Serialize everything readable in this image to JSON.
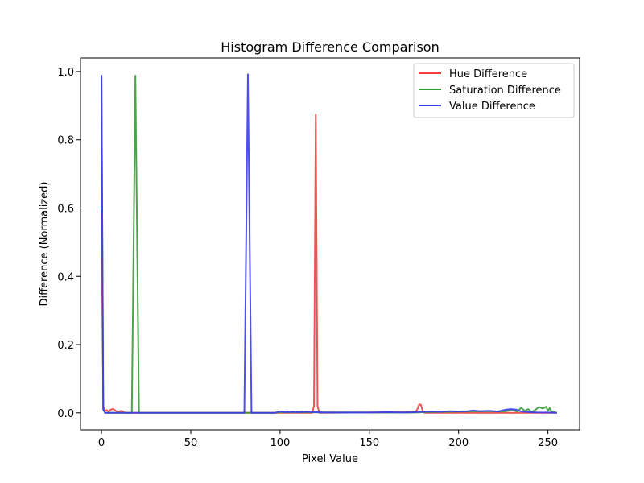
{
  "chart_data": {
    "type": "line",
    "title": "Histogram Difference Comparison",
    "xlabel": "Pixel Value",
    "ylabel": "Difference (Normalized)",
    "xlim": [
      -11.75,
      267.75
    ],
    "ylim": [
      -0.05,
      1.04
    ],
    "xticks": [
      0,
      50,
      100,
      150,
      200,
      250
    ],
    "yticks": [
      0.0,
      0.2,
      0.4,
      0.6,
      0.8,
      1.0
    ],
    "xtick_labels": [
      "0",
      "50",
      "100",
      "150",
      "200",
      "250"
    ],
    "ytick_labels": [
      "0.0",
      "0.2",
      "0.4",
      "0.6",
      "0.8",
      "1.0"
    ],
    "grid": false,
    "legend_position": "top-right",
    "series": [
      {
        "name": "Hue Difference",
        "color": "#f04040",
        "points": [
          [
            0,
            0.595
          ],
          [
            1,
            0.02
          ],
          [
            2,
            0.005
          ],
          [
            3,
            0.008
          ],
          [
            4,
            0.003
          ],
          [
            5,
            0.009
          ],
          [
            6,
            0.011
          ],
          [
            7,
            0.01
          ],
          [
            8,
            0.006
          ],
          [
            9,
            0.002
          ],
          [
            10,
            0.003
          ],
          [
            11,
            0.006
          ],
          [
            12,
            0.004
          ],
          [
            13,
            0.001
          ],
          [
            14,
            0.0
          ],
          [
            118,
            0.0
          ],
          [
            119,
            0.02
          ],
          [
            120,
            0.874
          ],
          [
            121,
            0.02
          ],
          [
            122,
            0.0
          ],
          [
            176,
            0.002
          ],
          [
            177,
            0.012
          ],
          [
            178,
            0.026
          ],
          [
            179,
            0.022
          ],
          [
            180,
            0.003
          ],
          [
            181,
            0.0
          ],
          [
            255,
            0.0
          ]
        ]
      },
      {
        "name": "Saturation Difference",
        "color": "#3a9a3a",
        "points": [
          [
            0,
            0.99
          ],
          [
            1,
            0.01
          ],
          [
            2,
            0.0
          ],
          [
            17,
            0.0
          ],
          [
            19,
            0.988
          ],
          [
            21,
            0.0
          ],
          [
            97,
            0.0
          ],
          [
            100,
            0.002
          ],
          [
            150,
            0.001
          ],
          [
            175,
            0.001
          ],
          [
            180,
            0.002
          ],
          [
            205,
            0.004
          ],
          [
            215,
            0.005
          ],
          [
            225,
            0.004
          ],
          [
            230,
            0.008
          ],
          [
            233,
            0.004
          ],
          [
            235,
            0.015
          ],
          [
            237,
            0.006
          ],
          [
            239,
            0.011
          ],
          [
            241,
            0.002
          ],
          [
            243,
            0.009
          ],
          [
            245,
            0.017
          ],
          [
            247,
            0.013
          ],
          [
            248,
            0.015
          ],
          [
            249,
            0.018
          ],
          [
            250,
            0.006
          ],
          [
            251,
            0.014
          ],
          [
            252,
            0.004
          ],
          [
            255,
            0.0
          ]
        ]
      },
      {
        "name": "Value Difference",
        "color": "#3c3cee",
        "points": [
          [
            0,
            0.99
          ],
          [
            1,
            0.01
          ],
          [
            2,
            0.0
          ],
          [
            80,
            0.0
          ],
          [
            82,
            0.992
          ],
          [
            84,
            0.0
          ],
          [
            97,
            0.0
          ],
          [
            99,
            0.003
          ],
          [
            101,
            0.004
          ],
          [
            103,
            0.002
          ],
          [
            107,
            0.003
          ],
          [
            110,
            0.002
          ],
          [
            115,
            0.003
          ],
          [
            120,
            0.002
          ],
          [
            125,
            0.001
          ],
          [
            135,
            0.001
          ],
          [
            150,
            0.001
          ],
          [
            160,
            0.002
          ],
          [
            170,
            0.001
          ],
          [
            180,
            0.003
          ],
          [
            185,
            0.004
          ],
          [
            190,
            0.003
          ],
          [
            195,
            0.005
          ],
          [
            200,
            0.004
          ],
          [
            205,
            0.005
          ],
          [
            208,
            0.007
          ],
          [
            212,
            0.005
          ],
          [
            217,
            0.006
          ],
          [
            222,
            0.004
          ],
          [
            226,
            0.009
          ],
          [
            229,
            0.011
          ],
          [
            232,
            0.01
          ],
          [
            235,
            0.004
          ],
          [
            240,
            0.002
          ],
          [
            245,
            0.001
          ],
          [
            250,
            0.001
          ],
          [
            255,
            0.0
          ]
        ]
      }
    ]
  }
}
